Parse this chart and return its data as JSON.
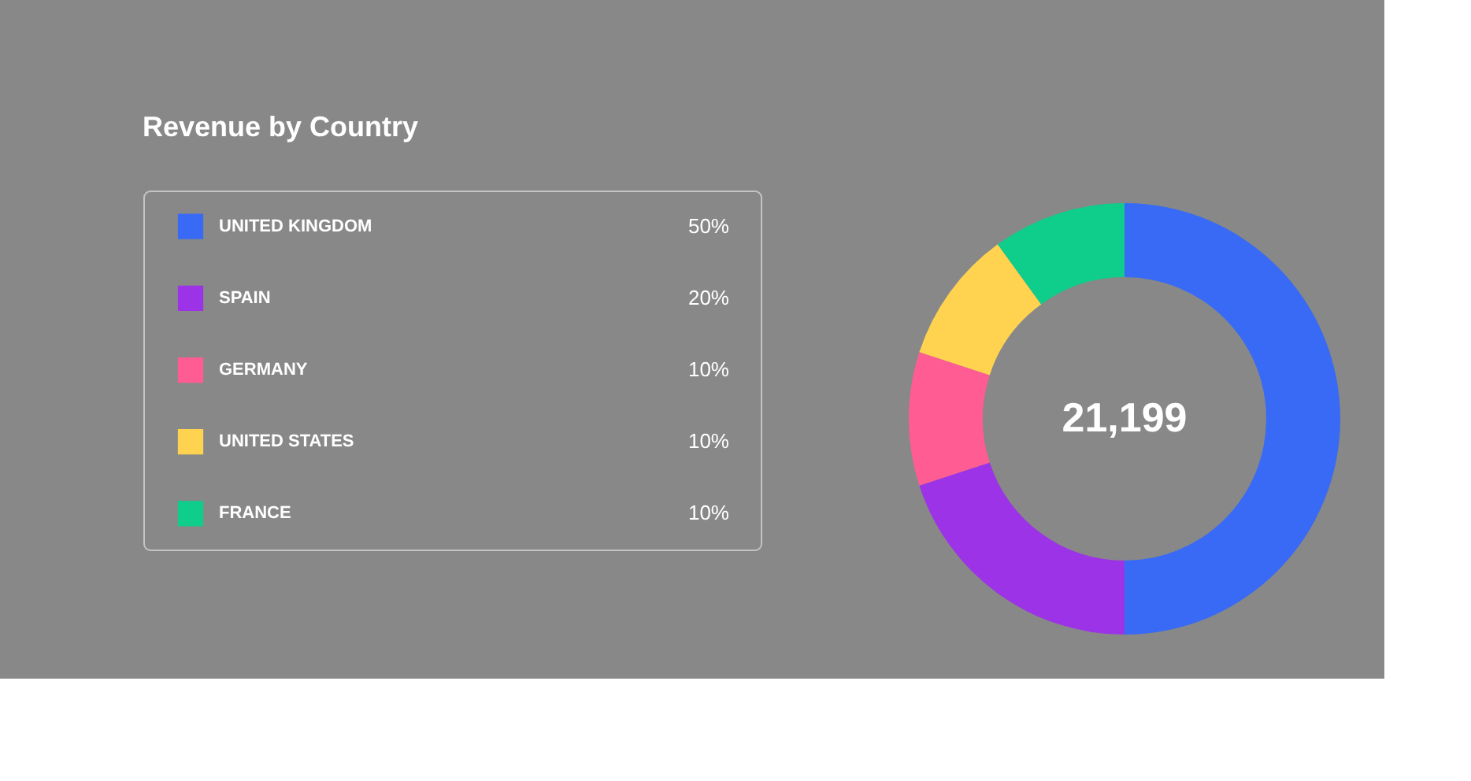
{
  "chart_data": {
    "type": "donut",
    "title": "Revenue by Country",
    "categories": [
      "UNITED KINGDOM",
      "SPAIN",
      "GERMANY",
      "UNITED STATES",
      "FRANCE"
    ],
    "values": [
      50,
      20,
      10,
      10,
      10
    ],
    "value_labels": [
      "50%",
      "20%",
      "10%",
      "10%",
      "10%"
    ],
    "colors": [
      "#386af5",
      "#9c33e6",
      "#ff5c93",
      "#ffd250",
      "#0fcd8b"
    ],
    "legend": "left",
    "annotations": [
      "21,199"
    ]
  }
}
